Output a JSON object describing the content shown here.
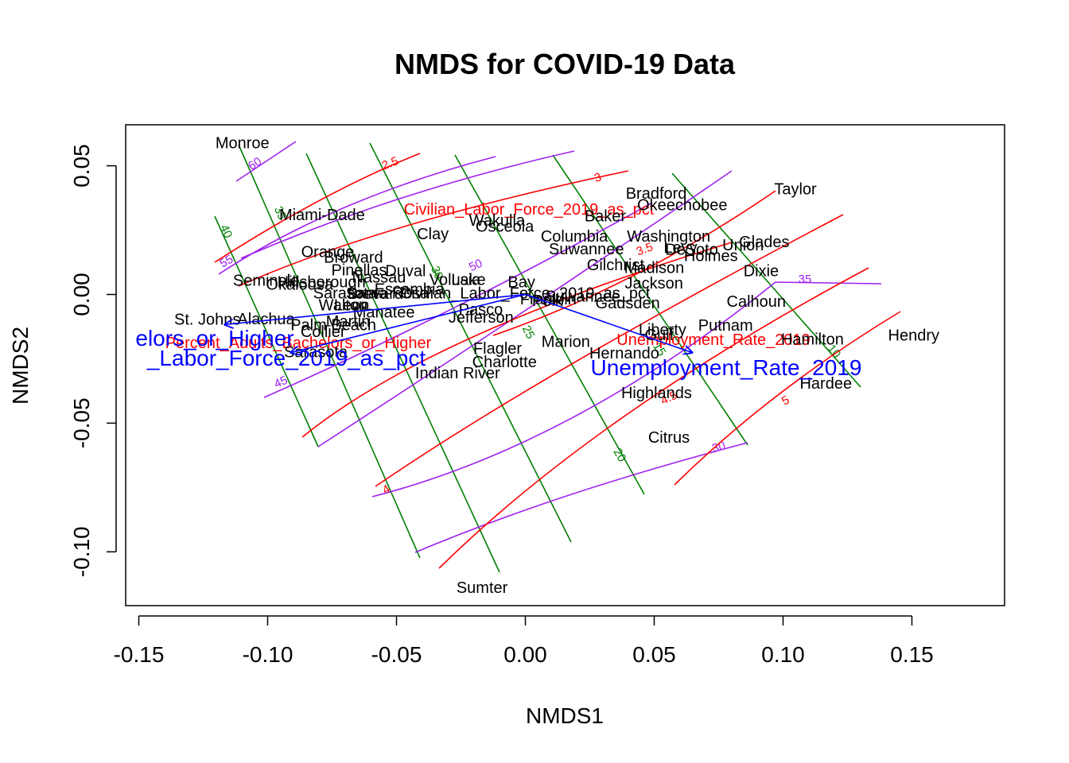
{
  "chart_data": {
    "type": "scatter",
    "title": "NMDS for COVID-19 Data",
    "xlabel": "NMDS1",
    "ylabel": "NMDS2",
    "xlim": [
      -0.16,
      0.18
    ],
    "ylim": [
      -0.12,
      0.06
    ],
    "x_ticks": [
      "-0.15",
      "-0.10",
      "-0.05",
      "0.00",
      "0.05",
      "0.10",
      "0.15"
    ],
    "y_ticks": [
      "-0.10",
      "-0.05",
      "0.00",
      "0.05"
    ],
    "grid": false,
    "points": [
      {
        "name": "Monroe",
        "x": -0.1098,
        "y": 0.0585
      },
      {
        "name": "Miami-Dade",
        "x": -0.0789,
        "y": 0.0305
      },
      {
        "name": "Orange",
        "x": -0.0767,
        "y": 0.0162
      },
      {
        "name": "Broward",
        "x": -0.0667,
        "y": 0.014
      },
      {
        "name": "Pinellas",
        "x": -0.0645,
        "y": 0.009
      },
      {
        "name": "Duval",
        "x": -0.0465,
        "y": 0.0087
      },
      {
        "name": "Nassau",
        "x": -0.0568,
        "y": 0.0062
      },
      {
        "name": "Seminole",
        "x": -0.1006,
        "y": 0.005
      },
      {
        "name": "Hillsborough",
        "x": -0.0791,
        "y": 0.0044
      },
      {
        "name": "Okaloosa",
        "x": -0.0876,
        "y": 0.0035
      },
      {
        "name": "Escambia",
        "x": -0.045,
        "y": 0.0016
      },
      {
        "name": "Lake",
        "x": -0.0221,
        "y": 0.0053
      },
      {
        "name": "Volusia",
        "x": -0.0273,
        "y": 0.0053
      },
      {
        "name": "Bay",
        "x": -0.0015,
        "y": 0.0044
      },
      {
        "name": "Sarasota",
        "x": -0.07,
        "y": 0.0001
      },
      {
        "name": "Santa Rosa",
        "x": -0.0535,
        "y": 0.0001
      },
      {
        "name": "Brevard",
        "x": -0.0582,
        "y": -0.0001
      },
      {
        "name": "Walton",
        "x": -0.0707,
        "y": -0.0045
      },
      {
        "name": "Manatee",
        "x": -0.0549,
        "y": -0.0073
      },
      {
        "name": "Leon",
        "x": -0.0674,
        "y": -0.0046
      },
      {
        "name": "Martin",
        "x": -0.0688,
        "y": -0.0108
      },
      {
        "name": "Palm Beach",
        "x": -0.0745,
        "y": -0.0123
      },
      {
        "name": "St. Johns",
        "x": -0.1234,
        "y": -0.0101
      },
      {
        "name": "Alachua",
        "x": -0.1006,
        "y": -0.01
      },
      {
        "name": "Collier",
        "x": -0.0785,
        "y": -0.0149
      },
      {
        "name": "Sarasota",
        "x": -0.0813,
        "y": -0.0227
      },
      {
        "name": "Pasco",
        "x": -0.0173,
        "y": -0.0063
      },
      {
        "name": "Jefferson",
        "x": -0.0172,
        "y": -0.0094
      },
      {
        "name": "Flagler",
        "x": -0.0108,
        "y": -0.0214
      },
      {
        "name": "Charlotte",
        "x": -0.0081,
        "y": -0.0266
      },
      {
        "name": "Indian River",
        "x": -0.0263,
        "y": -0.031
      },
      {
        "name": "Wakulla",
        "x": -0.011,
        "y": 0.0284
      },
      {
        "name": "Osceola",
        "x": -0.008,
        "y": 0.026
      },
      {
        "name": "Clay",
        "x": -0.0359,
        "y": 0.0231
      },
      {
        "name": "Civilian_Labor_Force_2019_as_pct",
        "x": -0.0001,
        "y": 0.0001
      },
      {
        "name": "Suwannee",
        "x": 0.0223,
        "y": -0.0011
      },
      {
        "name": "Franklin",
        "x": 0.0089,
        "y": -0.0022
      },
      {
        "name": "Polk",
        "x": 0.0086,
        "y": -0.0029
      },
      {
        "name": "Gadsden",
        "x": 0.0397,
        "y": -0.0038
      },
      {
        "name": "Marion",
        "x": 0.0157,
        "y": -0.0188
      },
      {
        "name": "Hernando",
        "x": 0.0384,
        "y": -0.0232
      },
      {
        "name": "Liberty",
        "x": 0.0532,
        "y": -0.0141
      },
      {
        "name": "Gulf",
        "x": 0.052,
        "y": -0.0162
      },
      {
        "name": "Putnam",
        "x": 0.0777,
        "y": -0.0124
      },
      {
        "name": "Hamilton",
        "x": 0.1114,
        "y": -0.0179
      },
      {
        "name": "Hendry",
        "x": 0.1507,
        "y": -0.0163
      },
      {
        "name": "Hardee",
        "x": 0.1166,
        "y": -0.0349
      },
      {
        "name": "Highlands",
        "x": 0.0509,
        "y": -0.0387
      },
      {
        "name": "Citrus",
        "x": 0.0557,
        "y": -0.0559
      },
      {
        "name": "Sumter",
        "x": -0.0168,
        "y": -0.1144
      },
      {
        "name": "Taylor",
        "x": 0.1048,
        "y": 0.0405
      },
      {
        "name": "Bradford",
        "x": 0.0508,
        "y": 0.0389
      },
      {
        "name": "Okeechobee",
        "x": 0.0609,
        "y": 0.0343
      },
      {
        "name": "Baker",
        "x": 0.031,
        "y": 0.0301
      },
      {
        "name": "Columbia",
        "x": 0.019,
        "y": 0.0221
      },
      {
        "name": "Washington",
        "x": 0.0556,
        "y": 0.0221
      },
      {
        "name": "Glades",
        "x": 0.0927,
        "y": 0.02
      },
      {
        "name": "Union",
        "x": 0.0845,
        "y": 0.0187
      },
      {
        "name": "DeSoto",
        "x": 0.0645,
        "y": 0.017
      },
      {
        "name": "Levy",
        "x": 0.0602,
        "y": 0.0178
      },
      {
        "name": "Suwannee",
        "x": 0.0237,
        "y": 0.0173
      },
      {
        "name": "Holmes",
        "x": 0.072,
        "y": 0.0146
      },
      {
        "name": "Gilchrist",
        "x": 0.035,
        "y": 0.0111
      },
      {
        "name": "Madison",
        "x": 0.05,
        "y": 0.0099
      },
      {
        "name": "Dixie",
        "x": 0.0915,
        "y": 0.0087
      },
      {
        "name": "Jackson",
        "x": 0.0499,
        "y": 0.0039
      },
      {
        "name": "Calhoun",
        "x": 0.0896,
        "y": -0.0031
      }
    ],
    "vectors": [
      {
        "name": "Percent_Adults_Bachelors_or_Higher",
        "label": "elors_or_Higher",
        "x": -0.1166,
        "y": -0.0117
      },
      {
        "name": "Civilian_Labor_Force_2019_as_pct",
        "label": "_Labor_Force_2019_as_pct",
        "x": -0.091,
        "y": -0.0226
      },
      {
        "name": "Unemployment_Rate_2019",
        "label": "Unemployment_Rate_2019",
        "x": 0.0647,
        "y": -0.0226
      }
    ],
    "surface_labels": [
      {
        "text": "Civilian_Labor_Force_2019_as_pct",
        "color": "#ff0000"
      },
      {
        "text": "Percent_Adults_Bachelors_or_Higher",
        "color": "#ff0000"
      },
      {
        "text": "Unemployment_Rate_2019",
        "color": "#ff0000"
      }
    ],
    "contours": {
      "red": {
        "color": "#ff0000",
        "levels": [
          "2.5",
          "3",
          "3.5",
          "4",
          "4.5",
          "5"
        ]
      },
      "green": {
        "color": "#008000",
        "levels": [
          "40",
          "35",
          "30",
          "25",
          "20",
          "15",
          "10"
        ]
      },
      "purple": {
        "color": "#a020f0",
        "levels": [
          "60",
          "55",
          "50",
          "45",
          "40",
          "35",
          "30"
        ]
      }
    },
    "colors": {
      "points": "#000000",
      "vectors": "#0000ff"
    }
  }
}
